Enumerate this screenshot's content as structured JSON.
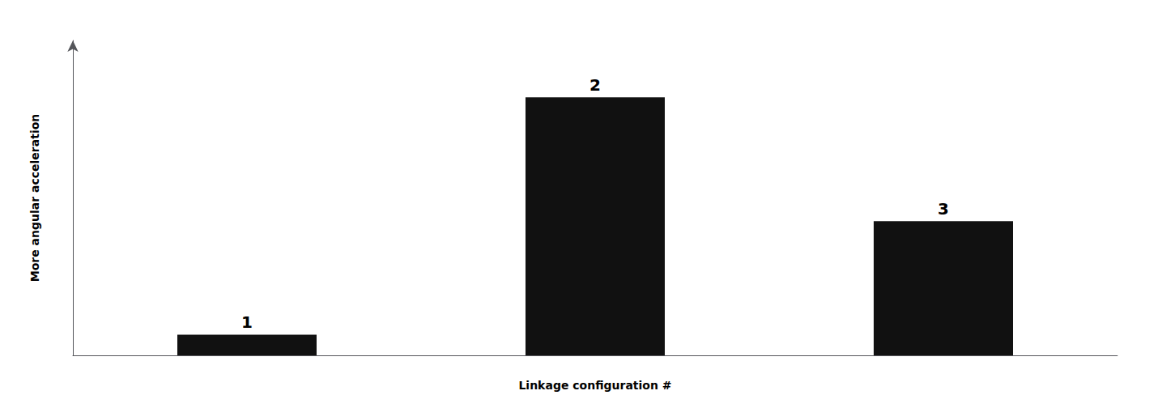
{
  "chart_data": {
    "type": "bar",
    "xlabel": "Linkage configuration #",
    "ylabel": "More angular acceleration",
    "categories": [
      "1",
      "2",
      "3"
    ],
    "values": [
      0.08,
      1.0,
      0.52
    ],
    "color": "#111111",
    "ylim": [
      0,
      1.22
    ],
    "yticks": [],
    "grid": false,
    "tick_labels": false
  }
}
